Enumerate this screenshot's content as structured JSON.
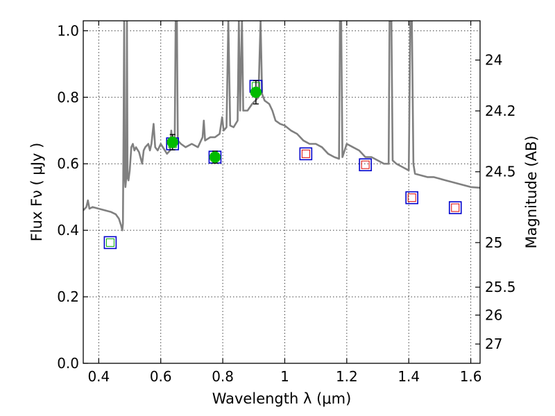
{
  "chart_data": {
    "type": "scatter",
    "xlabel": "Wavelength  λ (μm)",
    "ylabel": "Flux  Fν ( μJy )",
    "ylabel_right": "Magnitude (AB)",
    "xlim": [
      0.35,
      1.63
    ],
    "ylim": [
      0.0,
      1.03
    ],
    "grid": true,
    "x_ticks": [
      0.4,
      0.6,
      0.8,
      1.0,
      1.2,
      1.4,
      1.6
    ],
    "x_tick_labels": [
      "0.4",
      "0.6",
      "0.8",
      "1",
      "1.2",
      "1.4",
      "1.6"
    ],
    "y_ticks": [
      0.0,
      0.2,
      0.4,
      0.6,
      0.8,
      1.0
    ],
    "y_tick_labels": [
      "0.0",
      "0.2",
      "0.4",
      "0.6",
      "0.8",
      "1.0"
    ],
    "right_ticks": [
      {
        "label": "24",
        "flux": 0.912
      },
      {
        "label": "24.2",
        "flux": 0.759
      },
      {
        "label": "24.5",
        "flux": 0.576
      },
      {
        "label": "25",
        "flux": 0.363
      },
      {
        "label": "25.5",
        "flux": 0.229
      },
      {
        "label": "26",
        "flux": 0.145
      },
      {
        "label": "27",
        "flux": 0.058
      }
    ],
    "colors": {
      "spectrum": "#808080",
      "observed": "#00bb00",
      "model_box": "#0000cc",
      "inner_green": "#00aa00",
      "inner_red": "#dd0000",
      "errorbar": "#000000"
    },
    "series": [
      {
        "kind": "spectrum",
        "points": [
          [
            0.35,
            0.46
          ],
          [
            0.36,
            0.47
          ],
          [
            0.365,
            0.49
          ],
          [
            0.37,
            0.465
          ],
          [
            0.38,
            0.47
          ],
          [
            0.4,
            0.465
          ],
          [
            0.42,
            0.46
          ],
          [
            0.44,
            0.455
          ],
          [
            0.455,
            0.448
          ],
          [
            0.465,
            0.435
          ],
          [
            0.472,
            0.415
          ],
          [
            0.476,
            0.4
          ],
          [
            0.478,
            0.42
          ],
          [
            0.48,
            0.7
          ],
          [
            0.482,
            1.03
          ],
          [
            0.484,
            0.56
          ],
          [
            0.486,
            0.53
          ],
          [
            0.489,
            0.56
          ],
          [
            0.491,
            1.03
          ],
          [
            0.493,
            0.56
          ],
          [
            0.496,
            0.55
          ],
          [
            0.5,
            0.58
          ],
          [
            0.505,
            0.65
          ],
          [
            0.51,
            0.66
          ],
          [
            0.515,
            0.64
          ],
          [
            0.52,
            0.65
          ],
          [
            0.53,
            0.635
          ],
          [
            0.54,
            0.6
          ],
          [
            0.545,
            0.64
          ],
          [
            0.55,
            0.65
          ],
          [
            0.56,
            0.66
          ],
          [
            0.565,
            0.64
          ],
          [
            0.57,
            0.66
          ],
          [
            0.577,
            0.72
          ],
          [
            0.582,
            0.65
          ],
          [
            0.59,
            0.64
          ],
          [
            0.6,
            0.66
          ],
          [
            0.62,
            0.63
          ],
          [
            0.63,
            0.64
          ],
          [
            0.634,
            0.7
          ],
          [
            0.638,
            0.65
          ],
          [
            0.645,
            0.66
          ],
          [
            0.648,
            1.03
          ],
          [
            0.652,
            1.03
          ],
          [
            0.655,
            0.67
          ],
          [
            0.665,
            0.66
          ],
          [
            0.68,
            0.65
          ],
          [
            0.7,
            0.66
          ],
          [
            0.72,
            0.65
          ],
          [
            0.735,
            0.68
          ],
          [
            0.739,
            0.73
          ],
          [
            0.743,
            0.67
          ],
          [
            0.76,
            0.68
          ],
          [
            0.775,
            0.68
          ],
          [
            0.79,
            0.69
          ],
          [
            0.798,
            0.74
          ],
          [
            0.803,
            0.7
          ],
          [
            0.812,
            0.71
          ],
          [
            0.818,
            1.03
          ],
          [
            0.824,
            0.715
          ],
          [
            0.835,
            0.71
          ],
          [
            0.848,
            0.73
          ],
          [
            0.852,
            1.03
          ],
          [
            0.856,
            0.76
          ],
          [
            0.862,
            1.03
          ],
          [
            0.866,
            0.76
          ],
          [
            0.88,
            0.76
          ],
          [
            0.895,
            0.78
          ],
          [
            0.905,
            0.79
          ],
          [
            0.915,
            0.8
          ],
          [
            0.922,
            1.03
          ],
          [
            0.927,
            0.81
          ],
          [
            0.935,
            0.79
          ],
          [
            0.95,
            0.78
          ],
          [
            0.96,
            0.76
          ],
          [
            0.97,
            0.73
          ],
          [
            0.985,
            0.72
          ],
          [
            1.0,
            0.715
          ],
          [
            1.02,
            0.7
          ],
          [
            1.04,
            0.69
          ],
          [
            1.06,
            0.67
          ],
          [
            1.08,
            0.66
          ],
          [
            1.1,
            0.66
          ],
          [
            1.12,
            0.65
          ],
          [
            1.14,
            0.63
          ],
          [
            1.16,
            0.62
          ],
          [
            1.175,
            0.615
          ],
          [
            1.178,
            1.03
          ],
          [
            1.182,
            1.03
          ],
          [
            1.186,
            0.62
          ],
          [
            1.2,
            0.66
          ],
          [
            1.22,
            0.65
          ],
          [
            1.24,
            0.64
          ],
          [
            1.26,
            0.62
          ],
          [
            1.28,
            0.62
          ],
          [
            1.3,
            0.61
          ],
          [
            1.32,
            0.6
          ],
          [
            1.335,
            0.6
          ],
          [
            1.338,
            1.03
          ],
          [
            1.344,
            1.03
          ],
          [
            1.348,
            0.61
          ],
          [
            1.36,
            0.6
          ],
          [
            1.38,
            0.59
          ],
          [
            1.4,
            0.58
          ],
          [
            1.405,
            1.03
          ],
          [
            1.41,
            1.03
          ],
          [
            1.415,
            0.6
          ],
          [
            1.42,
            0.57
          ],
          [
            1.44,
            0.565
          ],
          [
            1.46,
            0.56
          ],
          [
            1.48,
            0.56
          ],
          [
            1.5,
            0.555
          ],
          [
            1.52,
            0.55
          ],
          [
            1.54,
            0.545
          ],
          [
            1.56,
            0.54
          ],
          [
            1.58,
            0.535
          ],
          [
            1.6,
            0.53
          ],
          [
            1.63,
            0.528
          ]
        ]
      },
      {
        "kind": "model_boxes",
        "points": [
          {
            "x": 0.437,
            "y": 0.363,
            "inner": "green"
          },
          {
            "x": 0.638,
            "y": 0.66,
            "inner": "green"
          },
          {
            "x": 0.775,
            "y": 0.62,
            "inner": "green"
          },
          {
            "x": 0.907,
            "y": 0.833,
            "inner": "green"
          },
          {
            "x": 1.068,
            "y": 0.63,
            "inner": "red"
          },
          {
            "x": 1.26,
            "y": 0.597,
            "inner": "red"
          },
          {
            "x": 1.41,
            "y": 0.498,
            "inner": "red"
          },
          {
            "x": 1.55,
            "y": 0.468,
            "inner": "red"
          }
        ]
      },
      {
        "kind": "observed",
        "points": [
          {
            "x": 0.638,
            "y": 0.665,
            "err": 0.023
          },
          {
            "x": 0.775,
            "y": 0.62,
            "err": 0.018
          },
          {
            "x": 0.907,
            "y": 0.815,
            "err": 0.035
          }
        ]
      }
    ]
  }
}
